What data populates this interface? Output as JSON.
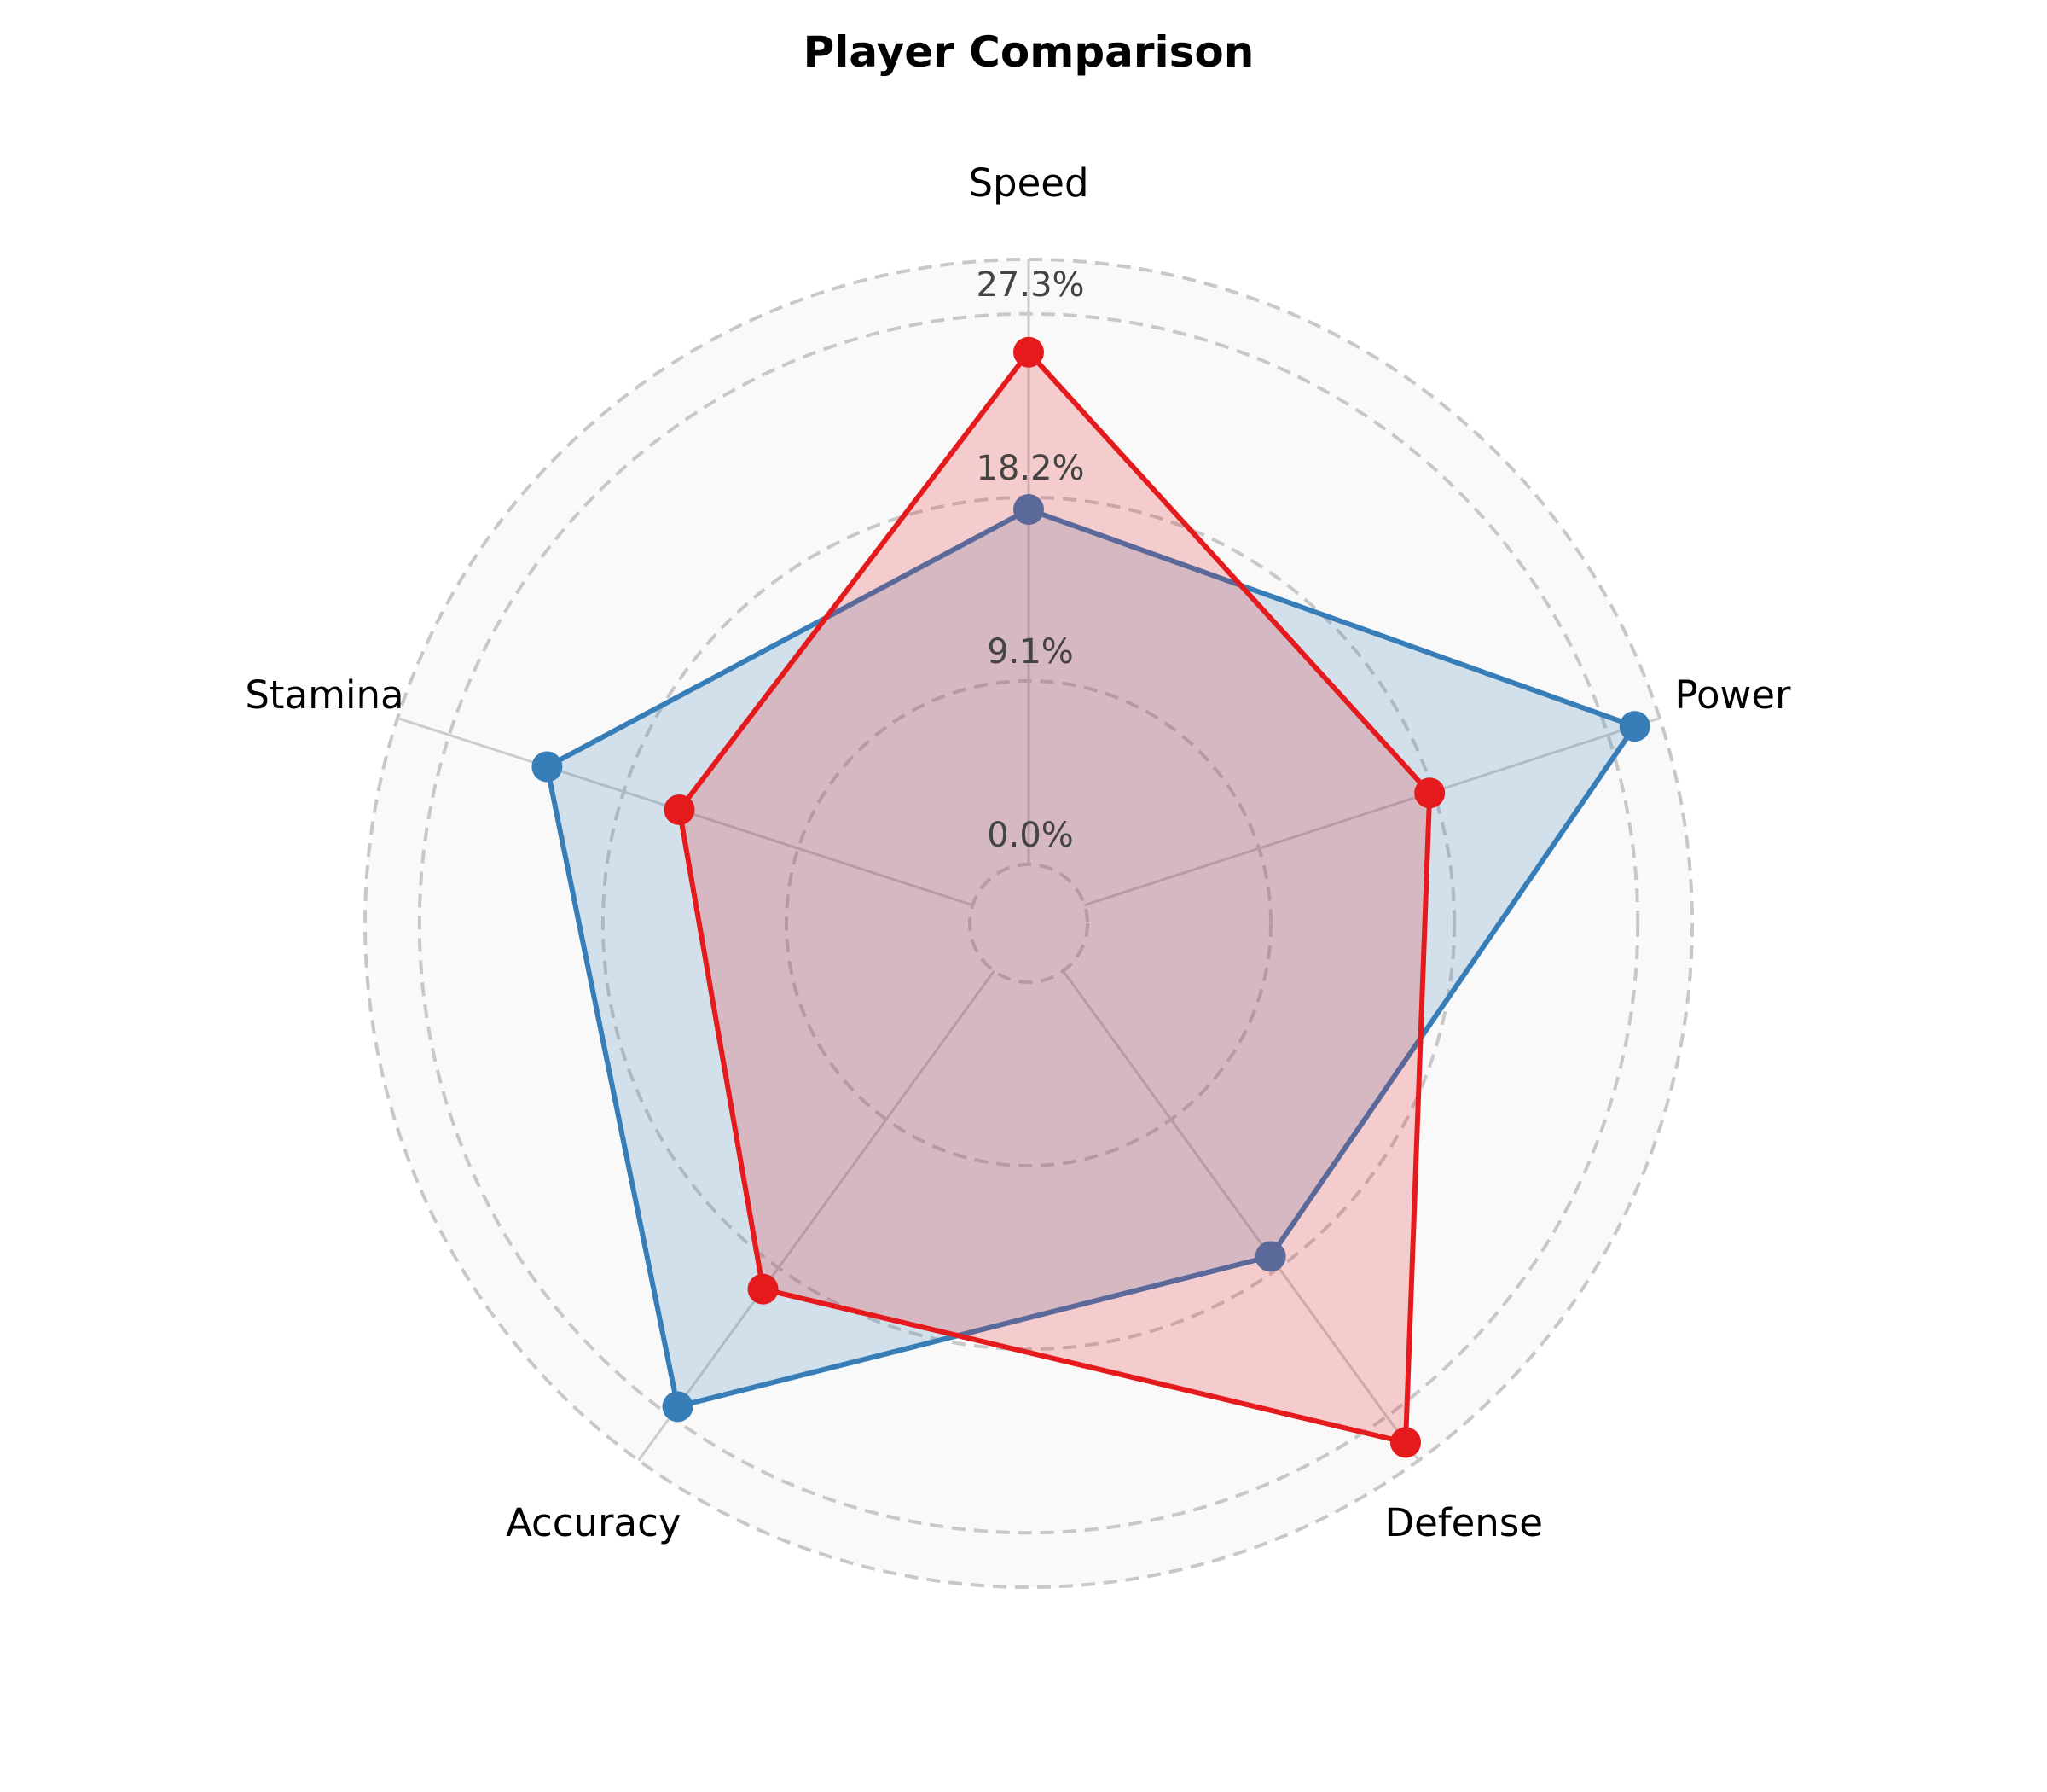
{
  "chart_data": {
    "type": "radar",
    "title": "Player Comparison",
    "axes": [
      "Speed",
      "Power",
      "Defense",
      "Accuracy",
      "Stamina"
    ],
    "tick_labels": [
      "0.0%",
      "9.1%",
      "18.2%",
      "27.3%"
    ],
    "tick_values": [
      0.0,
      9.1,
      18.2,
      27.3
    ],
    "range": [
      0,
      30
    ],
    "series": [
      {
        "values": [
          17.6,
          28.7,
          17.5,
          26.7,
          22.2
        ],
        "color": "#377eb8"
      },
      {
        "values": [
          25.4,
          18.0,
          28.9,
          19.5,
          15.3
        ],
        "color": "#e41a1c"
      }
    ],
    "grid": true,
    "grid_style": "dashed",
    "background": "#f9f9f9"
  }
}
